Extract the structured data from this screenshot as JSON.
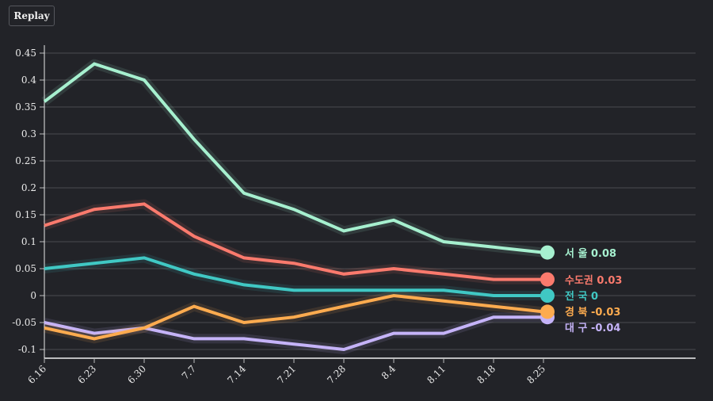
{
  "replay_label": "Replay",
  "chart_data": {
    "type": "line",
    "title": "",
    "xlabel": "",
    "ylabel": "",
    "x": [
      "6.16",
      "6.23",
      "6.30",
      "7.7",
      "7.14",
      "7.21",
      "7.28",
      "8.4",
      "8.11",
      "8.18",
      "8.25"
    ],
    "ylim": [
      -0.1,
      0.45
    ],
    "yticks": [
      -0.1,
      -0.05,
      0,
      0.05,
      0.1,
      0.15,
      0.2,
      0.25,
      0.3,
      0.35,
      0.4,
      0.45
    ],
    "ytick_labels": [
      "-0.1",
      "-0.05",
      "0",
      "0.05",
      "0.1",
      "0.15",
      "0.2",
      "0.25",
      "0.3",
      "0.35",
      "0.4",
      "0.45"
    ],
    "grid": true,
    "legend": "end-of-line labels (right)",
    "series": [
      {
        "name": "서 울",
        "label": "서 울 0.08",
        "color": "#a6f0cf",
        "values": [
          0.36,
          0.43,
          0.4,
          0.29,
          0.19,
          0.16,
          0.12,
          0.14,
          0.1,
          0.09,
          0.08
        ]
      },
      {
        "name": "수도권",
        "label": "수도권 0.03",
        "color": "#fa7a6d",
        "values": [
          0.13,
          0.16,
          0.17,
          0.11,
          0.07,
          0.06,
          0.04,
          0.05,
          0.04,
          0.03,
          0.03
        ]
      },
      {
        "name": "전 국",
        "label": "전 국 0",
        "color": "#40c8c4",
        "values": [
          0.05,
          0.06,
          0.07,
          0.04,
          0.02,
          0.01,
          0.01,
          0.01,
          0.01,
          0.0,
          0.0
        ]
      },
      {
        "name": "경 북",
        "label": "경 북 -0.03",
        "color": "#fdab4f",
        "values": [
          -0.06,
          -0.08,
          -0.06,
          -0.02,
          -0.05,
          -0.04,
          -0.02,
          0.0,
          -0.01,
          -0.02,
          -0.03
        ]
      },
      {
        "name": "대 구",
        "label": "대 구 -0.04",
        "color": "#c5b3f8",
        "values": [
          -0.05,
          -0.07,
          -0.06,
          -0.08,
          -0.08,
          -0.09,
          -0.1,
          -0.07,
          -0.07,
          -0.04,
          -0.04
        ]
      }
    ]
  }
}
